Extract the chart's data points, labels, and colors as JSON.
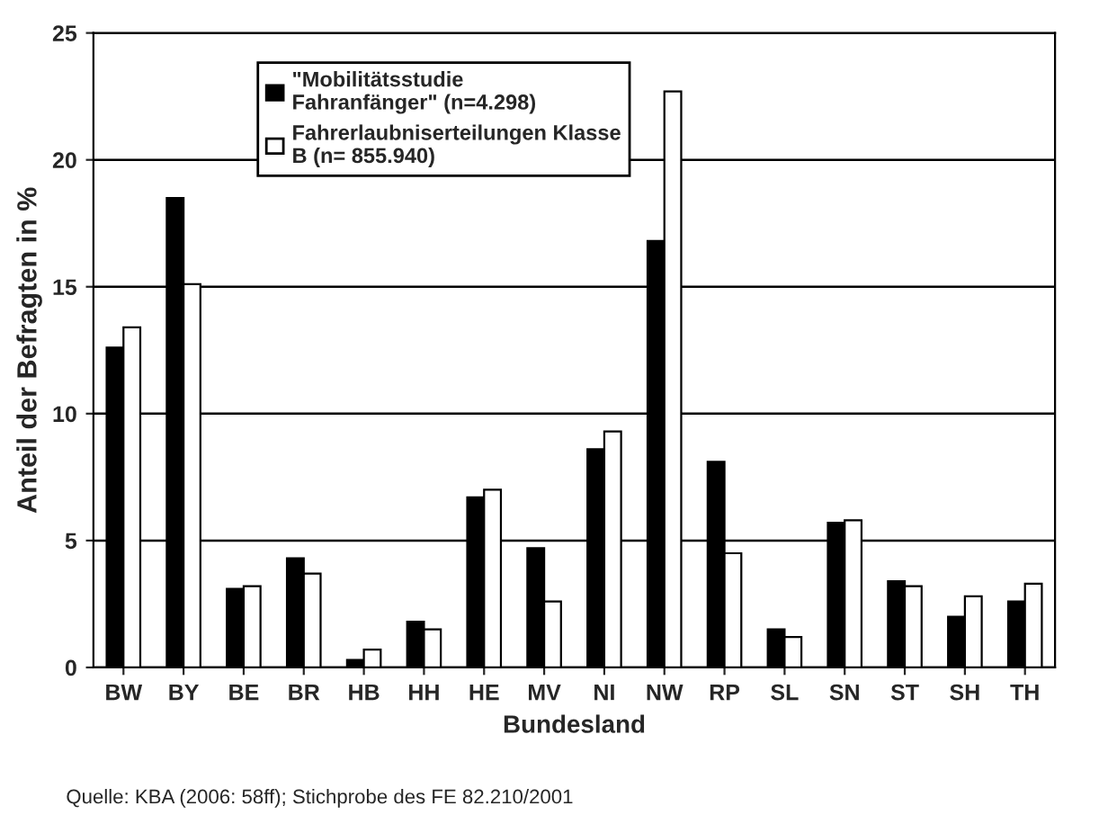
{
  "chart_data": {
    "type": "bar",
    "categories": [
      "BW",
      "BY",
      "BE",
      "BR",
      "HB",
      "HH",
      "HE",
      "MV",
      "NI",
      "NW",
      "RP",
      "SL",
      "SN",
      "ST",
      "SH",
      "TH"
    ],
    "series": [
      {
        "name": "\"Mobilitätsstudie Fahranfänger\" (n=4.298)",
        "color": "#000000",
        "values": [
          12.6,
          18.5,
          3.1,
          4.3,
          0.3,
          1.8,
          6.7,
          4.7,
          8.6,
          16.8,
          8.1,
          1.5,
          5.7,
          3.4,
          2.0,
          2.6
        ]
      },
      {
        "name": "Fahrerlaubniserteilungen Klasse B (n= 855.940)",
        "color": "#ffffff",
        "values": [
          13.4,
          15.1,
          3.2,
          3.7,
          0.7,
          1.5,
          7.0,
          2.6,
          9.3,
          22.7,
          4.5,
          1.2,
          5.8,
          3.2,
          2.8,
          3.3
        ]
      }
    ],
    "xlabel": "Bundesland",
    "ylabel": "Anteil der Befragten in %",
    "ylim": [
      0,
      25
    ],
    "yticks": [
      0,
      5,
      10,
      15,
      20,
      25
    ],
    "grid": "y",
    "legend": "top left",
    "annotations": [
      "Quelle: KBA (2006: 58ff); Stichprobe des FE 82.210/2001"
    ]
  }
}
